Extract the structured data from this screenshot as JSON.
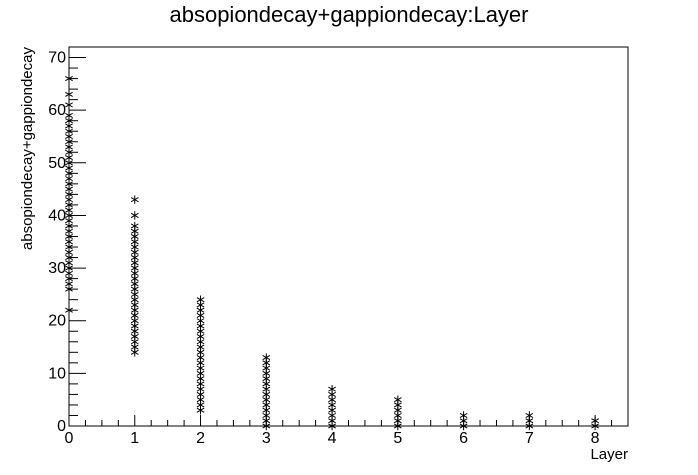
{
  "chart_data": {
    "type": "scatter",
    "title": "absopiondecay+gappiondecay:Layer",
    "xlabel": "Layer",
    "ylabel": "absopiondecay+gappiondecay",
    "xlim": [
      0,
      8.5
    ],
    "ylim": [
      0,
      72
    ],
    "x_ticks": [
      "0",
      "1",
      "2",
      "3",
      "4",
      "5",
      "6",
      "7",
      "8"
    ],
    "y_ticks": [
      "0",
      "10",
      "20",
      "30",
      "40",
      "50",
      "60",
      "70"
    ],
    "marker": "asterisk",
    "marker_color": "#000000",
    "grid": false,
    "legend": "none",
    "points_by_layer": [
      {
        "x": 0,
        "y": [
          22,
          26,
          27,
          28,
          29,
          30,
          31,
          32,
          33,
          34,
          35,
          36,
          37,
          38,
          39,
          40,
          41,
          42,
          43,
          44,
          45,
          46,
          47,
          48,
          49,
          50,
          51,
          52,
          53,
          54,
          55,
          56,
          57,
          58,
          59,
          61,
          63,
          66
        ]
      },
      {
        "x": 1,
        "y": [
          14,
          15,
          16,
          17,
          18,
          19,
          20,
          21,
          22,
          23,
          24,
          25,
          26,
          27,
          28,
          29,
          30,
          31,
          32,
          33,
          34,
          35,
          36,
          37,
          38,
          40,
          43
        ]
      },
      {
        "x": 2,
        "y": [
          3,
          4,
          5,
          6,
          7,
          8,
          9,
          10,
          11,
          12,
          13,
          14,
          15,
          16,
          17,
          18,
          19,
          20,
          21,
          22,
          23,
          24
        ]
      },
      {
        "x": 3,
        "y": [
          0,
          1,
          2,
          3,
          4,
          5,
          6,
          7,
          8,
          9,
          10,
          11,
          12,
          13
        ]
      },
      {
        "x": 4,
        "y": [
          0,
          1,
          2,
          3,
          4,
          5,
          6,
          7
        ]
      },
      {
        "x": 5,
        "y": [
          0,
          1,
          2,
          3,
          4,
          5
        ]
      },
      {
        "x": 6,
        "y": [
          0,
          1,
          2
        ]
      },
      {
        "x": 7,
        "y": [
          0,
          1,
          2
        ]
      },
      {
        "x": 8,
        "y": [
          0,
          1
        ]
      }
    ]
  }
}
